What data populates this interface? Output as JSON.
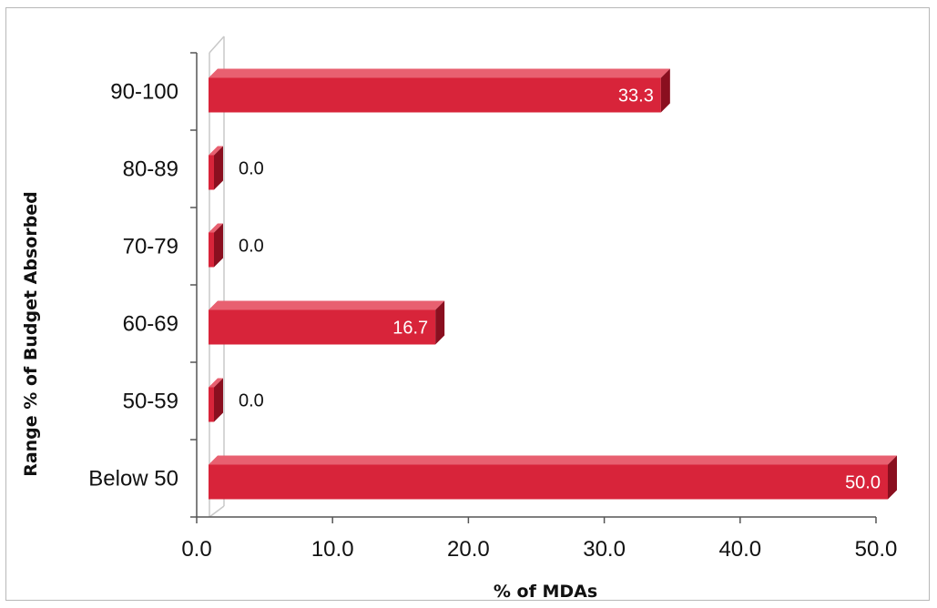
{
  "chart_data": {
    "type": "bar",
    "orientation": "horizontal",
    "title": "",
    "categories": [
      "90-100",
      "80-89",
      "70-79",
      "60-69",
      "50-59",
      "Below 50"
    ],
    "values": [
      33.3,
      0.0,
      0.0,
      16.7,
      0.0,
      50.0
    ],
    "value_labels": [
      "33.3",
      "0.0",
      "0.0",
      "16.7",
      "0.0",
      "50.0"
    ],
    "xlabel": "% of MDAs",
    "ylabel": "Range % of Budget Absorbed",
    "xlim": [
      0,
      50
    ],
    "xticks": [
      "0.0",
      "10.0",
      "20.0",
      "30.0",
      "40.0",
      "50.0"
    ],
    "grid": false,
    "legend": "none",
    "bar_color": "#d8243a",
    "bar_top_color": "#e86070",
    "bar_side_color": "#8a0f1f"
  }
}
